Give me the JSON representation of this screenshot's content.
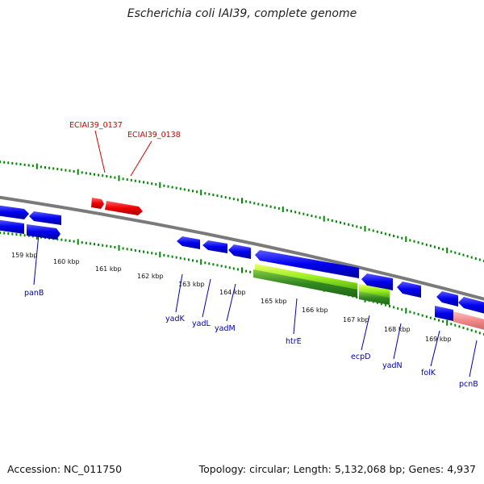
{
  "title": "Escherichia coli IAI39, complete genome",
  "footer": {
    "accession": "Accession: NC_011750",
    "summary": "Topology: circular; Length: 5,132,068 bp; Genes: 4,937"
  },
  "colors": {
    "forward_gene": "#0000ee",
    "highlight_gene": "#ee0000",
    "rrna": "#88dd22",
    "pseudo": "#ee8888",
    "tick": "#008800",
    "backbone": "#808080"
  },
  "kbp_labels": [
    "159 kbp",
    "160 kbp",
    "161 kbp",
    "162 kbp",
    "163 kbp",
    "164 kbp",
    "165 kbp",
    "166 kbp",
    "167 kbp",
    "168 kbp",
    "169 kbp"
  ],
  "highlight_labels": [
    "ECIAI39_0137",
    "ECIAI39_0138"
  ],
  "gene_labels": [
    "panB",
    "yadK",
    "yadL",
    "yadM",
    "htrE",
    "ecpD",
    "yadN",
    "folK",
    "pcnB"
  ]
}
